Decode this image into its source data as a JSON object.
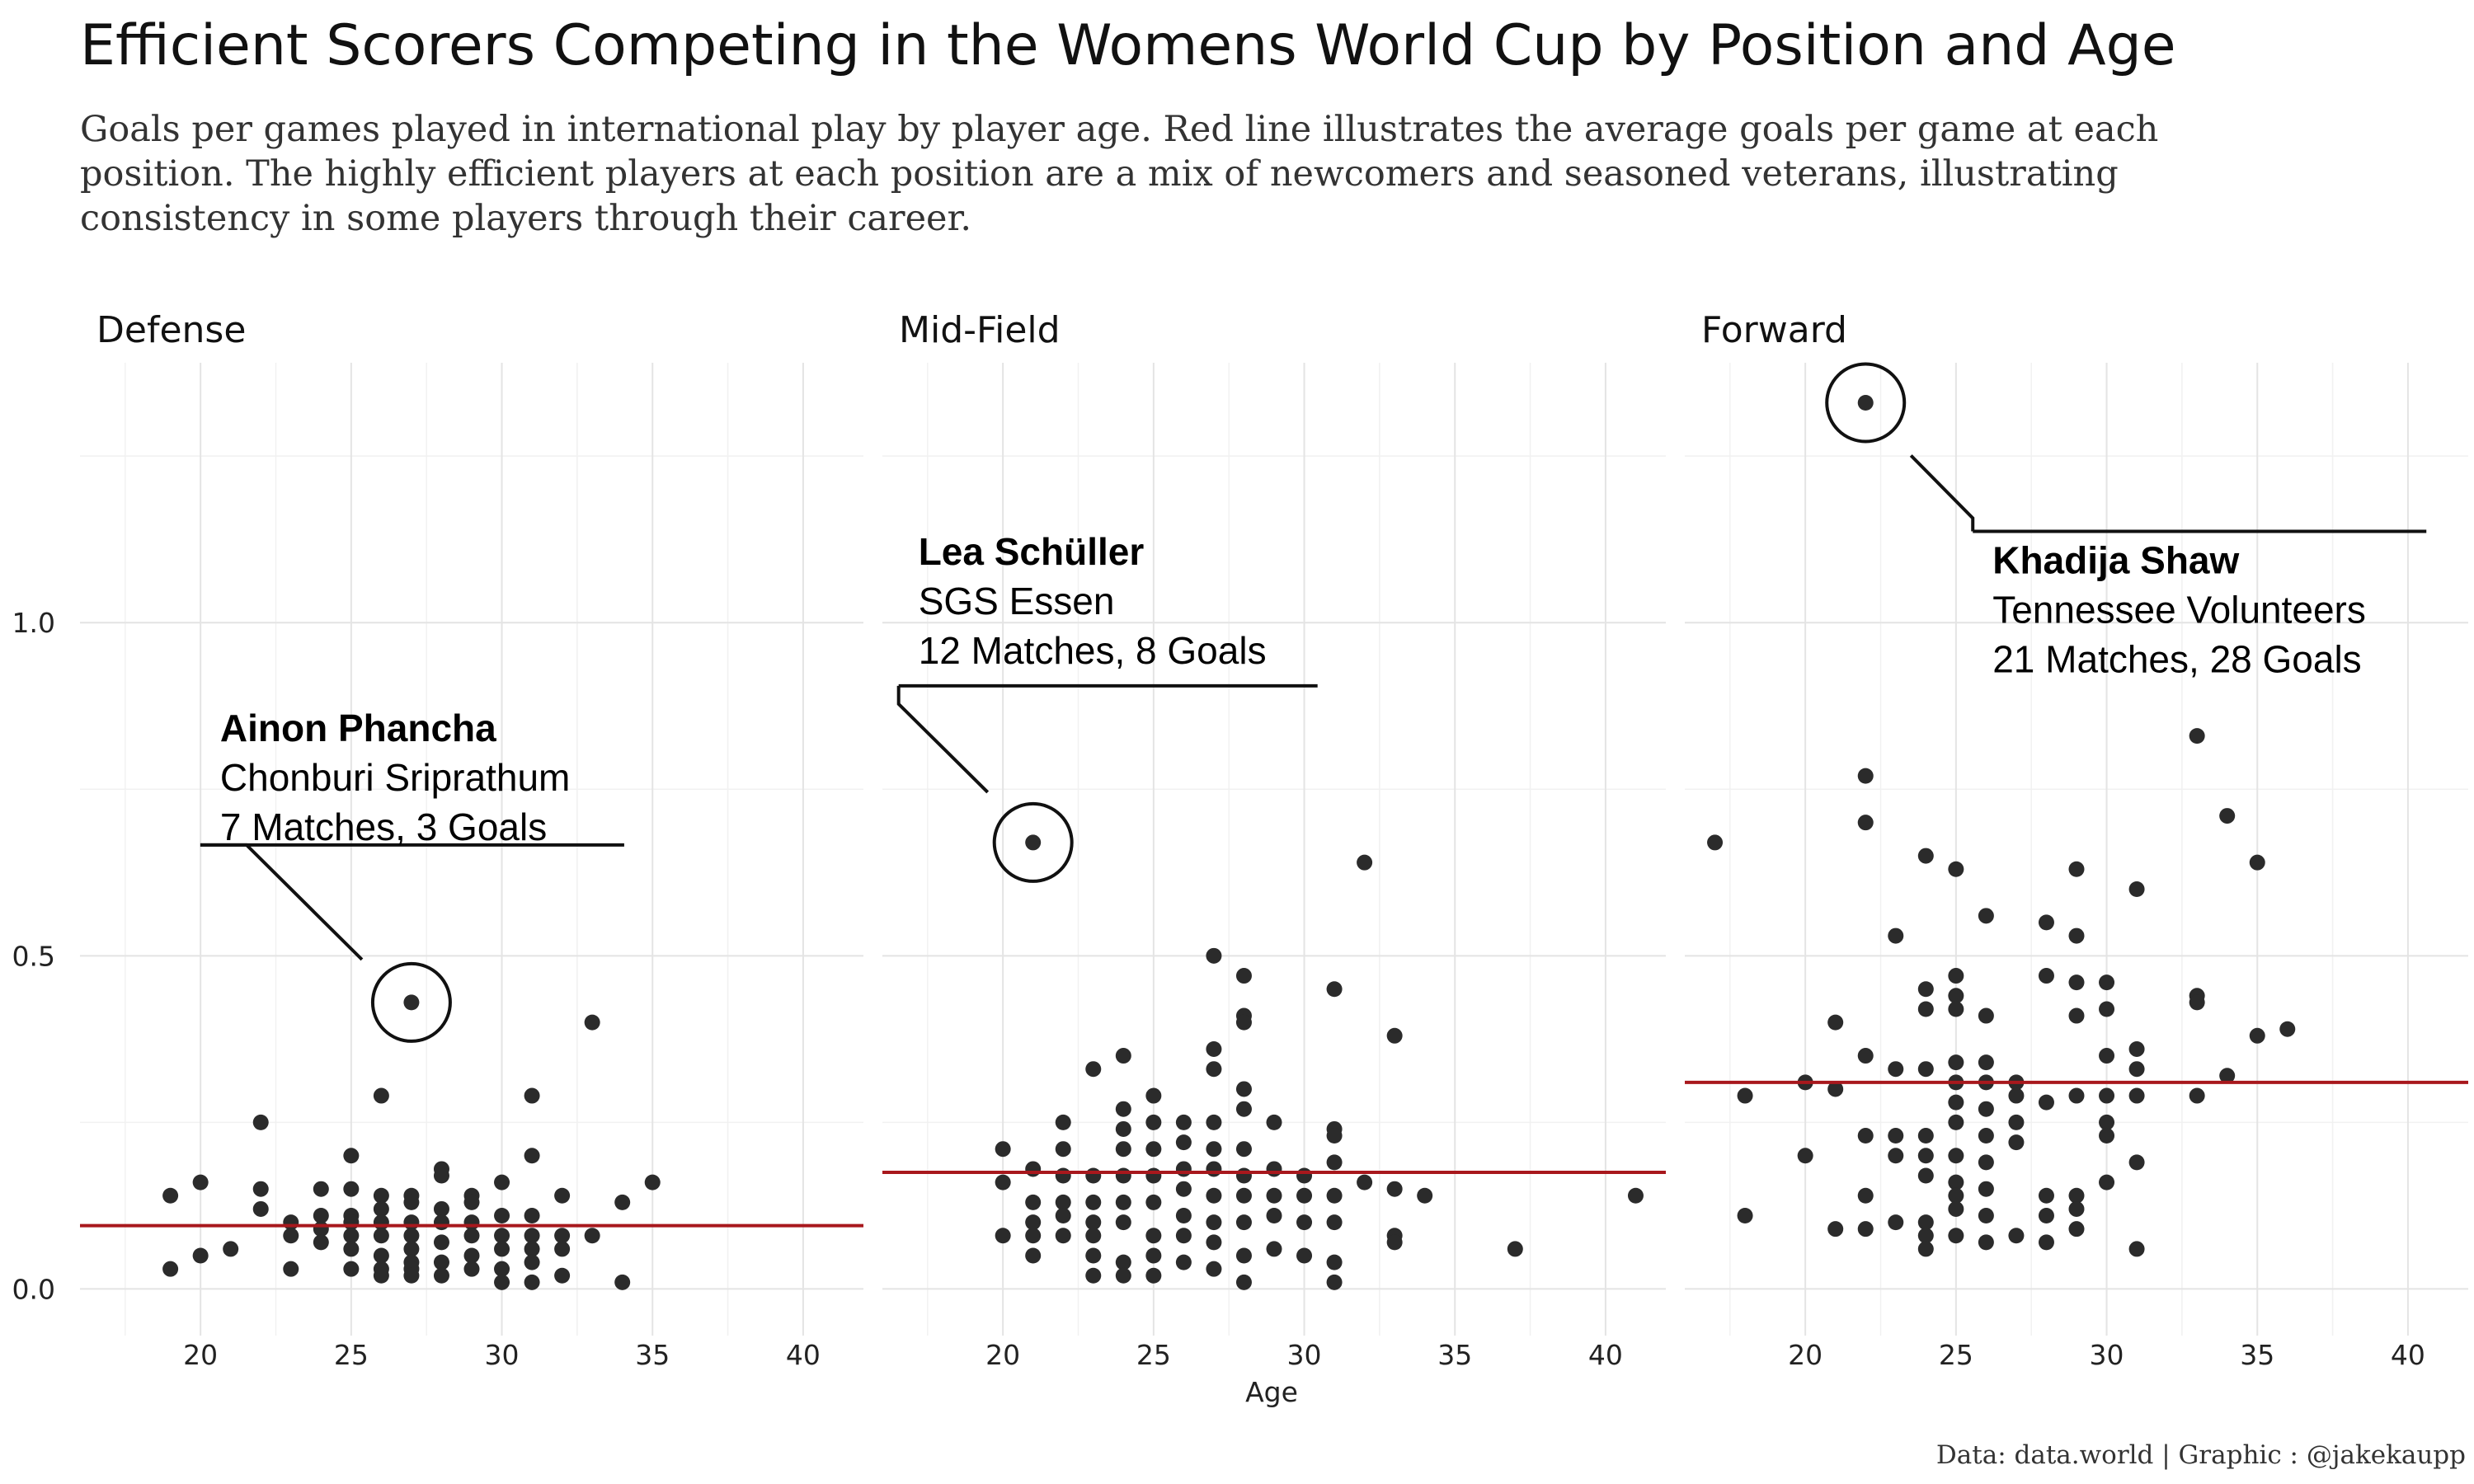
{
  "chart_data": {
    "type": "scatter",
    "title": "Efficient Scorers Competing in the Womens World Cup by Position and Age",
    "subtitle_lines": [
      "Goals per games played in international play by player age. Red line illustrates the average goals per game at each",
      "position. The highly efficient players at each position are a mix of newcomers and seasoned veterans, illustrating",
      "consistency in some players through their career."
    ],
    "xlabel": "Age",
    "ylabel": "",
    "xlim": [
      16,
      42
    ],
    "ylim": [
      -0.07,
      1.39
    ],
    "x_ticks": [
      20,
      25,
      30,
      35,
      40
    ],
    "y_ticks": [
      0.0,
      0.5,
      1.0
    ],
    "y_tick_labels": [
      "0.0",
      "0.5",
      "1.0"
    ],
    "caption": "Data: data.world | Graphic : @jakekaupp",
    "grid": true,
    "panels": [
      {
        "name": "Defense",
        "average": 0.095,
        "points": [
          [
            19,
            0.03
          ],
          [
            19,
            0.14
          ],
          [
            20,
            0.16
          ],
          [
            20,
            0.05
          ],
          [
            21,
            0.06
          ],
          [
            22,
            0.25
          ],
          [
            22,
            0.15
          ],
          [
            22,
            0.12
          ],
          [
            23,
            0.1
          ],
          [
            23,
            0.08
          ],
          [
            23,
            0.03
          ],
          [
            24,
            0.15
          ],
          [
            24,
            0.11
          ],
          [
            24,
            0.09
          ],
          [
            24,
            0.07
          ],
          [
            25,
            0.2
          ],
          [
            25,
            0.15
          ],
          [
            25,
            0.11
          ],
          [
            25,
            0.1
          ],
          [
            25,
            0.08
          ],
          [
            25,
            0.06
          ],
          [
            25,
            0.03
          ],
          [
            26,
            0.29
          ],
          [
            26,
            0.14
          ],
          [
            26,
            0.12
          ],
          [
            26,
            0.1
          ],
          [
            26,
            0.08
          ],
          [
            26,
            0.05
          ],
          [
            26,
            0.03
          ],
          [
            26,
            0.02
          ],
          [
            27,
            0.43
          ],
          [
            27,
            0.14
          ],
          [
            27,
            0.13
          ],
          [
            27,
            0.1
          ],
          [
            27,
            0.08
          ],
          [
            27,
            0.06
          ],
          [
            27,
            0.04
          ],
          [
            27,
            0.03
          ],
          [
            27,
            0.02
          ],
          [
            28,
            0.18
          ],
          [
            28,
            0.17
          ],
          [
            28,
            0.12
          ],
          [
            28,
            0.1
          ],
          [
            28,
            0.07
          ],
          [
            28,
            0.04
          ],
          [
            28,
            0.02
          ],
          [
            29,
            0.14
          ],
          [
            29,
            0.13
          ],
          [
            29,
            0.1
          ],
          [
            29,
            0.08
          ],
          [
            29,
            0.05
          ],
          [
            29,
            0.03
          ],
          [
            30,
            0.16
          ],
          [
            30,
            0.11
          ],
          [
            30,
            0.08
          ],
          [
            30,
            0.06
          ],
          [
            30,
            0.03
          ],
          [
            30,
            0.01
          ],
          [
            31,
            0.29
          ],
          [
            31,
            0.2
          ],
          [
            31,
            0.11
          ],
          [
            31,
            0.08
          ],
          [
            31,
            0.06
          ],
          [
            31,
            0.04
          ],
          [
            31,
            0.01
          ],
          [
            32,
            0.14
          ],
          [
            32,
            0.08
          ],
          [
            32,
            0.06
          ],
          [
            32,
            0.02
          ],
          [
            33,
            0.4
          ],
          [
            33,
            0.08
          ],
          [
            34,
            0.13
          ],
          [
            34,
            0.01
          ],
          [
            35,
            0.16
          ]
        ],
        "highlight": {
          "x": 27,
          "y": 0.43,
          "name": "Ainon Phancha",
          "club": "Chonburi Sriprathum",
          "stats": "7 Matches, 3 Goals"
        }
      },
      {
        "name": "Mid-Field",
        "average": 0.175,
        "points": [
          [
            20,
            0.21
          ],
          [
            20,
            0.16
          ],
          [
            20,
            0.08
          ],
          [
            21,
            0.67
          ],
          [
            21,
            0.18
          ],
          [
            21,
            0.13
          ],
          [
            21,
            0.1
          ],
          [
            21,
            0.08
          ],
          [
            21,
            0.05
          ],
          [
            22,
            0.25
          ],
          [
            22,
            0.21
          ],
          [
            22,
            0.17
          ],
          [
            22,
            0.13
          ],
          [
            22,
            0.11
          ],
          [
            22,
            0.08
          ],
          [
            23,
            0.33
          ],
          [
            23,
            0.17
          ],
          [
            23,
            0.13
          ],
          [
            23,
            0.1
          ],
          [
            23,
            0.08
          ],
          [
            23,
            0.05
          ],
          [
            23,
            0.02
          ],
          [
            24,
            0.35
          ],
          [
            24,
            0.27
          ],
          [
            24,
            0.24
          ],
          [
            24,
            0.21
          ],
          [
            24,
            0.17
          ],
          [
            24,
            0.13
          ],
          [
            24,
            0.1
          ],
          [
            24,
            0.04
          ],
          [
            24,
            0.02
          ],
          [
            25,
            0.29
          ],
          [
            25,
            0.25
          ],
          [
            25,
            0.21
          ],
          [
            25,
            0.17
          ],
          [
            25,
            0.13
          ],
          [
            25,
            0.08
          ],
          [
            25,
            0.05
          ],
          [
            25,
            0.02
          ],
          [
            26,
            0.25
          ],
          [
            26,
            0.22
          ],
          [
            26,
            0.18
          ],
          [
            26,
            0.15
          ],
          [
            26,
            0.11
          ],
          [
            26,
            0.08
          ],
          [
            26,
            0.04
          ],
          [
            27,
            0.5
          ],
          [
            27,
            0.36
          ],
          [
            27,
            0.33
          ],
          [
            27,
            0.25
          ],
          [
            27,
            0.21
          ],
          [
            27,
            0.18
          ],
          [
            27,
            0.14
          ],
          [
            27,
            0.1
          ],
          [
            27,
            0.07
          ],
          [
            27,
            0.03
          ],
          [
            28,
            0.47
          ],
          [
            28,
            0.41
          ],
          [
            28,
            0.4
          ],
          [
            28,
            0.3
          ],
          [
            28,
            0.27
          ],
          [
            28,
            0.21
          ],
          [
            28,
            0.17
          ],
          [
            28,
            0.14
          ],
          [
            28,
            0.1
          ],
          [
            28,
            0.05
          ],
          [
            28,
            0.01
          ],
          [
            29,
            0.25
          ],
          [
            29,
            0.18
          ],
          [
            29,
            0.14
          ],
          [
            29,
            0.11
          ],
          [
            29,
            0.06
          ],
          [
            30,
            0.17
          ],
          [
            30,
            0.14
          ],
          [
            30,
            0.1
          ],
          [
            30,
            0.05
          ],
          [
            31,
            0.45
          ],
          [
            31,
            0.24
          ],
          [
            31,
            0.23
          ],
          [
            31,
            0.19
          ],
          [
            31,
            0.14
          ],
          [
            31,
            0.1
          ],
          [
            31,
            0.04
          ],
          [
            31,
            0.01
          ],
          [
            32,
            0.64
          ],
          [
            32,
            0.16
          ],
          [
            33,
            0.38
          ],
          [
            33,
            0.15
          ],
          [
            33,
            0.08
          ],
          [
            33,
            0.07
          ],
          [
            34,
            0.14
          ],
          [
            37,
            0.06
          ],
          [
            41,
            0.14
          ]
        ],
        "highlight": {
          "x": 21,
          "y": 0.67,
          "name": "Lea Schüller",
          "club": "SGS Essen",
          "stats": "12 Matches, 8 Goals"
        }
      },
      {
        "name": "Forward",
        "average": 0.31,
        "points": [
          [
            17,
            0.67
          ],
          [
            18,
            0.29
          ],
          [
            18,
            0.11
          ],
          [
            20,
            0.31
          ],
          [
            20,
            0.2
          ],
          [
            21,
            0.4
          ],
          [
            21,
            0.3
          ],
          [
            21,
            0.09
          ],
          [
            22,
            1.33
          ],
          [
            22,
            0.77
          ],
          [
            22,
            0.7
          ],
          [
            22,
            0.35
          ],
          [
            22,
            0.23
          ],
          [
            22,
            0.14
          ],
          [
            22,
            0.09
          ],
          [
            23,
            0.53
          ],
          [
            23,
            0.33
          ],
          [
            23,
            0.23
          ],
          [
            23,
            0.2
          ],
          [
            23,
            0.1
          ],
          [
            24,
            0.65
          ],
          [
            24,
            0.45
          ],
          [
            24,
            0.42
          ],
          [
            24,
            0.33
          ],
          [
            24,
            0.23
          ],
          [
            24,
            0.2
          ],
          [
            24,
            0.17
          ],
          [
            24,
            0.1
          ],
          [
            24,
            0.08
          ],
          [
            24,
            0.06
          ],
          [
            25,
            0.63
          ],
          [
            25,
            0.47
          ],
          [
            25,
            0.44
          ],
          [
            25,
            0.42
          ],
          [
            25,
            0.34
          ],
          [
            25,
            0.31
          ],
          [
            25,
            0.28
          ],
          [
            25,
            0.25
          ],
          [
            25,
            0.2
          ],
          [
            25,
            0.16
          ],
          [
            25,
            0.14
          ],
          [
            25,
            0.12
          ],
          [
            25,
            0.08
          ],
          [
            26,
            0.56
          ],
          [
            26,
            0.41
          ],
          [
            26,
            0.34
          ],
          [
            26,
            0.31
          ],
          [
            26,
            0.27
          ],
          [
            26,
            0.23
          ],
          [
            26,
            0.19
          ],
          [
            26,
            0.15
          ],
          [
            26,
            0.11
          ],
          [
            26,
            0.07
          ],
          [
            27,
            0.31
          ],
          [
            27,
            0.29
          ],
          [
            27,
            0.25
          ],
          [
            27,
            0.22
          ],
          [
            27,
            0.08
          ],
          [
            28,
            0.55
          ],
          [
            28,
            0.47
          ],
          [
            28,
            0.28
          ],
          [
            28,
            0.14
          ],
          [
            28,
            0.11
          ],
          [
            28,
            0.07
          ],
          [
            29,
            0.63
          ],
          [
            29,
            0.53
          ],
          [
            29,
            0.46
          ],
          [
            29,
            0.41
          ],
          [
            29,
            0.29
          ],
          [
            29,
            0.14
          ],
          [
            29,
            0.12
          ],
          [
            29,
            0.09
          ],
          [
            30,
            0.46
          ],
          [
            30,
            0.42
          ],
          [
            30,
            0.35
          ],
          [
            30,
            0.29
          ],
          [
            30,
            0.25
          ],
          [
            30,
            0.23
          ],
          [
            30,
            0.16
          ],
          [
            31,
            0.6
          ],
          [
            31,
            0.36
          ],
          [
            31,
            0.33
          ],
          [
            31,
            0.29
          ],
          [
            31,
            0.19
          ],
          [
            31,
            0.06
          ],
          [
            33,
            0.83
          ],
          [
            33,
            0.44
          ],
          [
            33,
            0.43
          ],
          [
            33,
            0.29
          ],
          [
            34,
            0.71
          ],
          [
            34,
            0.32
          ],
          [
            35,
            0.64
          ],
          [
            35,
            0.38
          ],
          [
            36,
            0.39
          ]
        ],
        "highlight": {
          "x": 22,
          "y": 1.33,
          "name": "Khadija Shaw",
          "club": "Tennessee Volunteers",
          "stats": "21 Matches, 28 Goals"
        }
      }
    ]
  }
}
